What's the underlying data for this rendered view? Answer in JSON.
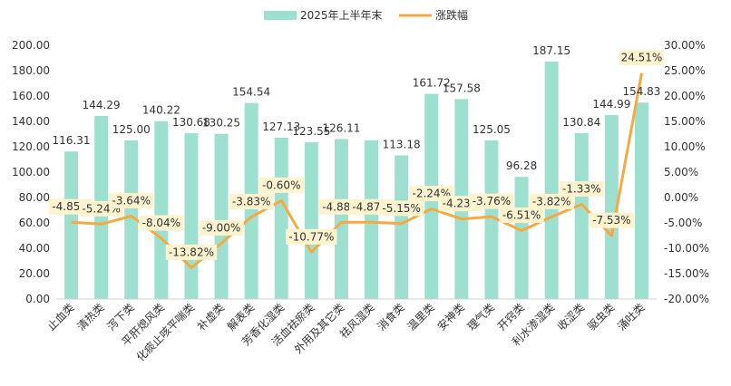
{
  "chart_data": {
    "type": "bar",
    "categories": [
      "止血类",
      "清热类",
      "泻下类",
      "平肝熄风类",
      "化痰止咳平喘类",
      "补虚类",
      "解表类",
      "芳香化湿类",
      "活血祛瘀类",
      "外用及其它类",
      "祛风湿类",
      "消食类",
      "温里类",
      "安神类",
      "理气类",
      "开窍类",
      "利水渗湿类",
      "收涩类",
      "驱虫类",
      "涌吐类"
    ],
    "series": [
      {
        "name": "2025年上半年末",
        "type": "bar",
        "axis": "left",
        "color": "#9ee0cf",
        "values": [
          116.31,
          144.29,
          125.0,
          140.22,
          130.68,
          130.25,
          154.54,
          127.13,
          123.55,
          126.11,
          125.05,
          113.18,
          161.72,
          157.58,
          125.05,
          96.28,
          187.15,
          130.84,
          144.99,
          154.83
        ]
      },
      {
        "name": "涨跌幅",
        "type": "line",
        "axis": "right",
        "color": "#f5a940",
        "values": [
          -4.85,
          -5.24,
          -3.64,
          -8.04,
          -13.82,
          -9.0,
          -3.83,
          -0.6,
          -10.77,
          -4.88,
          -4.87,
          -5.15,
          -2.24,
          -4.23,
          -3.76,
          -6.51,
          -3.82,
          -1.33,
          -7.53,
          24.51
        ]
      }
    ],
    "bar_value_labels": [
      "116.31",
      "144.29",
      "125.00",
      "140.22",
      "130.68",
      "130.25",
      "154.54",
      "127.13",
      "123.55",
      "126.11",
      "",
      "113.18",
      "161.72",
      "157.58",
      "125.05",
      "96.28",
      "187.15",
      "130.84",
      "144.99",
      "154.83"
    ],
    "line_value_labels": [
      "-4.85%",
      "-5.24%",
      "-3.64%",
      "-8.04%",
      "-13.82%",
      "-9.00%",
      "-3.83%",
      "-0.60%",
      "-10.77%",
      "-4.88%",
      "-4.87%",
      "-5.15%",
      "-2.24%",
      "-4.23%",
      "-3.76%",
      "-6.51%",
      "-3.82%",
      "-1.33%",
      "-7.53%",
      "24.51%"
    ],
    "y_left": {
      "min": 0,
      "max": 200,
      "ticks": [
        0,
        20,
        40,
        60,
        80,
        100,
        120,
        140,
        160,
        180,
        200
      ],
      "tick_labels": [
        "0.00",
        "20.00",
        "40.00",
        "60.00",
        "80.00",
        "100.00",
        "120.00",
        "140.00",
        "160.00",
        "180.00",
        "200.00"
      ]
    },
    "y_right": {
      "min": -20,
      "max": 30,
      "ticks": [
        -20,
        -15,
        -10,
        -5,
        0,
        5,
        10,
        15,
        20,
        25,
        30
      ],
      "tick_labels": [
        "-20.00%",
        "-15.00%",
        "-10.00%",
        "-5.00%",
        "0.00%",
        "5.00%",
        "10.00%",
        "15.00%",
        "20.00%",
        "25.00%",
        "30.00%"
      ]
    },
    "grid": false,
    "legend_position": "top-center",
    "label_box_color": "#fdf3cf"
  }
}
